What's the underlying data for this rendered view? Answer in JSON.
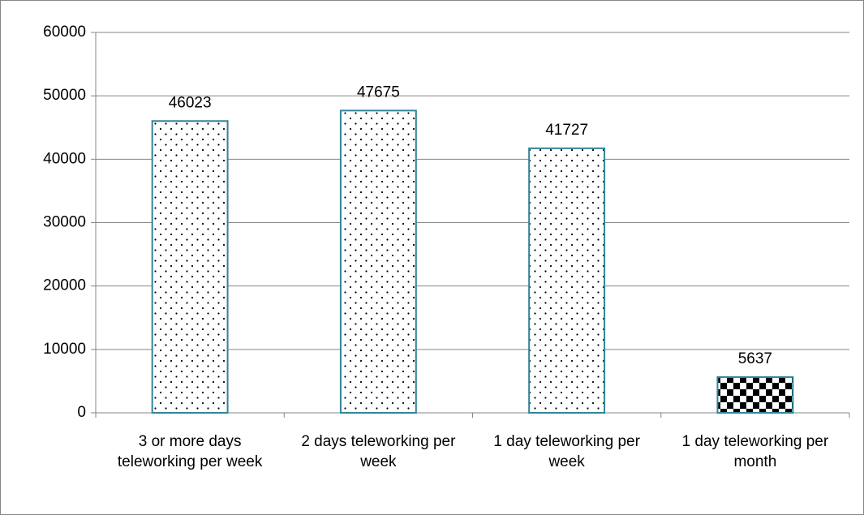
{
  "chart_data": {
    "type": "bar",
    "categories": [
      "3 or more days teleworking per week",
      "2 days teleworking per week",
      "1 day teleworking per week",
      "1 day teleworking per month"
    ],
    "values": [
      46023,
      47675,
      41727,
      5637
    ],
    "patterns": [
      "dots",
      "dots",
      "dots",
      "checker"
    ],
    "color": "#31849b",
    "ylim": [
      0,
      60000
    ],
    "yticks": [
      0,
      10000,
      20000,
      30000,
      40000,
      50000,
      60000
    ],
    "grid": true
  }
}
